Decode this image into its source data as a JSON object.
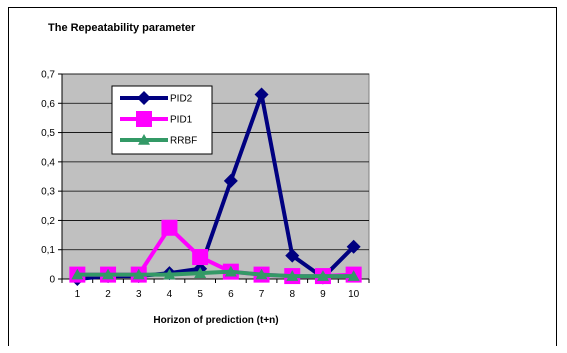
{
  "chart_data": {
    "type": "line",
    "title": "The Repeatability parameter",
    "xlabel": "Horizon of prediction (t+n)",
    "ylabel": "",
    "categories": [
      "1",
      "2",
      "3",
      "4",
      "5",
      "6",
      "7",
      "8",
      "9",
      "10"
    ],
    "ylim": [
      0,
      0.7
    ],
    "yticks": [
      "0",
      "0,1",
      "0,2",
      "0,3",
      "0,4",
      "0,5",
      "0,6",
      "0,7"
    ],
    "grid": true,
    "legend_position": "top-left inside plot",
    "series": [
      {
        "name": "PID2",
        "color": "#000080",
        "marker": "diamond",
        "values": [
          0.0,
          0.01,
          0.01,
          0.02,
          0.035,
          0.335,
          0.63,
          0.08,
          0.005,
          0.11
        ]
      },
      {
        "name": "PID1",
        "color": "#ff00ff",
        "marker": "square",
        "values": [
          0.015,
          0.015,
          0.015,
          0.175,
          0.075,
          0.025,
          0.015,
          0.01,
          0.01,
          0.015
        ]
      },
      {
        "name": "RRBF",
        "color": "#339966",
        "marker": "triangle",
        "values": [
          0.015,
          0.015,
          0.015,
          0.015,
          0.02,
          0.025,
          0.015,
          0.01,
          0.01,
          0.01
        ]
      }
    ]
  }
}
